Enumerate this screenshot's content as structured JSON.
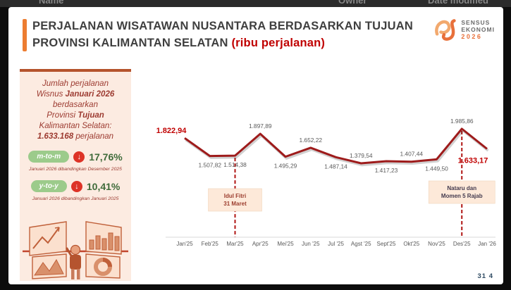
{
  "background_window": {
    "columns": [
      {
        "label": "Name"
      },
      {
        "label": "Owner"
      },
      {
        "label": "Date modified"
      }
    ]
  },
  "header": {
    "title_line1": "PERJALANAN WISATAWAN NUSANTARA BERDASARKAN TUJUAN",
    "title_line2": "PROVINSI KALIMANTAN SELATAN",
    "title_unit": "(ribu perjalanan)",
    "accent_color": "#ED7D31",
    "unit_color": "#C00000"
  },
  "logo": {
    "line1": "SENSUS",
    "line2": "EKONOMI",
    "year": "2026"
  },
  "summary_panel": {
    "intro": [
      [
        {
          "t": "Jumlah perjalanan"
        }
      ],
      [
        {
          "t": "Wisnus "
        },
        {
          "t": "Januari 2026",
          "b": 1
        }
      ],
      [
        {
          "t": "berdasarkan"
        }
      ],
      [
        {
          "t": "Provinsi "
        },
        {
          "t": "Tujuan",
          "b": 1
        }
      ],
      [
        {
          "t": "Kalimantan Selatan:"
        }
      ],
      [
        {
          "t": "1.633.168",
          "b": 1
        },
        {
          "t": " perjalanan"
        }
      ]
    ],
    "metrics": [
      {
        "badge": "m-to-m",
        "icon": "↓",
        "value": "17,76%",
        "note": "Januari 2026 dibandingkan Desember 2025"
      },
      {
        "badge": "y-to-y",
        "icon": "↓",
        "value": "10,41%",
        "note": "Januari 2026 dibandingkan Januari 2025"
      }
    ],
    "badge_color": "#9CCB8B",
    "arrow_color": "#DD3327",
    "value_color": "#3F6B3A"
  },
  "page_number": "31 4",
  "chart_data": {
    "type": "line",
    "title": "Perjalanan Wisatawan Nusantara Berdasarkan Tujuan Provinsi Kalimantan Selatan",
    "unit": "ribu perjalanan",
    "categories": [
      "Jan'25",
      "Feb'25",
      "Mar'25",
      "Apr'25",
      "Mei'25",
      "Jun '25",
      "Jul '25",
      "Agst '25",
      "Sept'25",
      "Okt'25",
      "Nov'25",
      "Des'25",
      "Jan '26"
    ],
    "values": [
      1822.94,
      1507.82,
      1514.38,
      1897.89,
      1495.29,
      1652.22,
      1487.14,
      1379.54,
      1417.23,
      1407.44,
      1449.5,
      1985.86,
      1633.17
    ],
    "labels": [
      "1.822,94",
      "1.507,82",
      "1.514,38",
      "1.897,89",
      "1.495,29",
      "1.652,22",
      "1.487,14",
      "1.379,54",
      "1.417,23",
      "1.407,44",
      "1.449,50",
      "1.985,86",
      "1.633,17"
    ],
    "label_side": [
      "L",
      "b",
      "b",
      "a",
      "b",
      "a",
      "b",
      "a",
      "b",
      "a",
      "b",
      "a",
      "R"
    ],
    "emphasis_indices": [
      0,
      12
    ],
    "annotations": [
      {
        "index": 2,
        "lines": [
          "Idul Fitri",
          "31 Maret"
        ],
        "text_color": "#9C3D2E"
      },
      {
        "index": 11,
        "lines": [
          "Nataru dan",
          "Momen 5 Rajab"
        ],
        "text_color": "#433A4E"
      }
    ],
    "line_color": "#9E1B1B",
    "emphasis_color": "#C00000",
    "label_color": "#595959",
    "dash_color": "#B01513",
    "annotation_bg": "#FDE9D9",
    "axis_color": "#D9D9D9",
    "xlabel": "",
    "ylabel": "",
    "legend": false,
    "grid": false
  }
}
